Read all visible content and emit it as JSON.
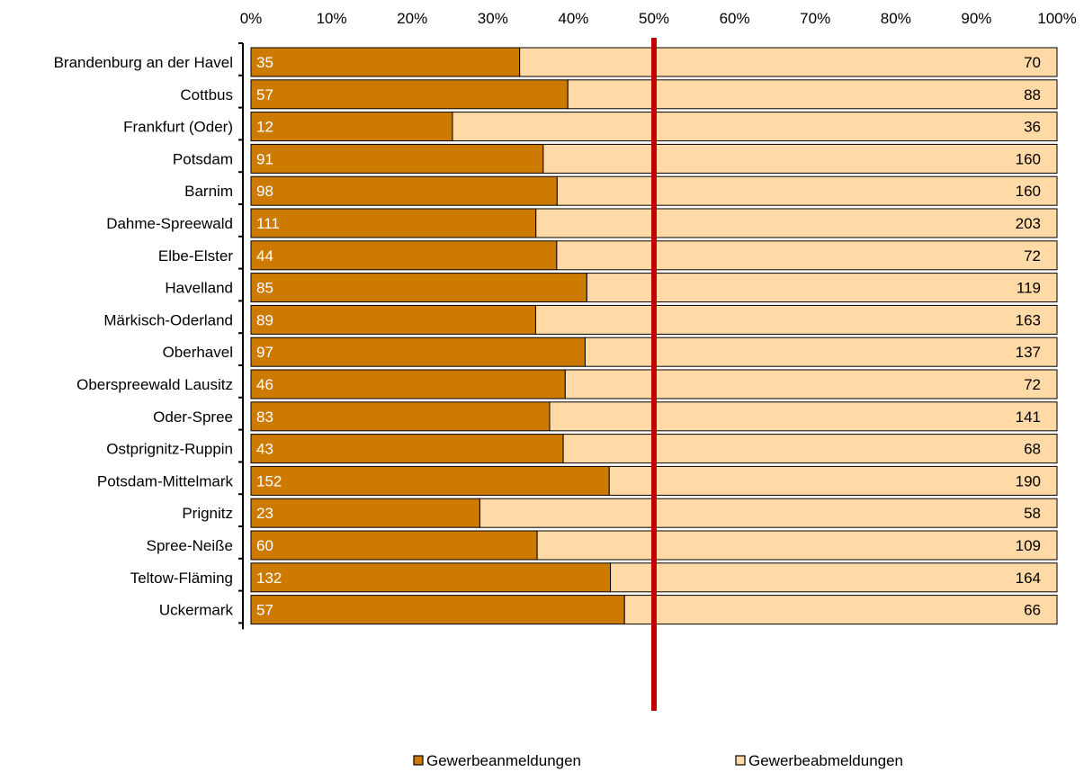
{
  "chart_data": {
    "type": "bar",
    "orientation": "horizontal",
    "stacking": "percent",
    "categories": [
      "Brandenburg an der Havel",
      "Cottbus",
      "Frankfurt (Oder)",
      "Potsdam",
      "Barnim",
      "Dahme-Spreewald",
      "Elbe-Elster",
      "Havelland",
      "Märkisch-Oderland",
      "Oberhavel",
      "Oberspreewald Lausitz",
      "Oder-Spree",
      "Ostprignitz-Ruppin",
      "Potsdam-Mittelmark",
      "Prignitz",
      "Spree-Neiße",
      "Teltow-Fläming",
      "Uckermark"
    ],
    "series": [
      {
        "name": "Gewerbeanmeldungen",
        "color": "#CC7A00",
        "values": [
          35,
          57,
          12,
          91,
          98,
          111,
          44,
          85,
          89,
          97,
          46,
          83,
          43,
          152,
          23,
          60,
          132,
          57
        ]
      },
      {
        "name": "Gewerbeabmeldungen",
        "color": "#FFD9A6",
        "values": [
          70,
          88,
          36,
          160,
          160,
          203,
          72,
          119,
          163,
          137,
          72,
          141,
          68,
          190,
          58,
          109,
          164,
          66
        ]
      }
    ],
    "x_ticks": [
      "0%",
      "10%",
      "20%",
      "30%",
      "40%",
      "50%",
      "60%",
      "70%",
      "80%",
      "90%",
      "100%"
    ],
    "xlim": [
      0,
      100
    ],
    "reference_line": {
      "value": 50,
      "color": "#C00000"
    },
    "axis_position": "top",
    "grid": false,
    "legend_position": "bottom"
  }
}
